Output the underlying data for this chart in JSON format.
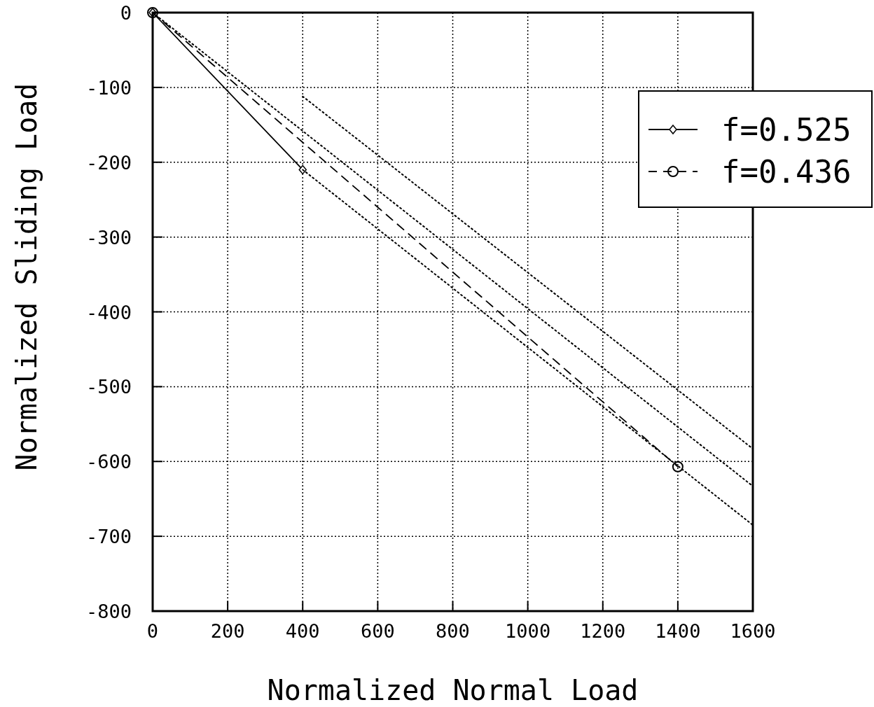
{
  "chart_data": {
    "type": "line",
    "xlabel": "Normalized Normal Load",
    "ylabel": "Normalized Sliding Load",
    "xlim": [
      0,
      1600
    ],
    "ylim": [
      -800,
      0
    ],
    "xticks": [
      0,
      200,
      400,
      600,
      800,
      1000,
      1200,
      1400,
      1600
    ],
    "yticks": [
      -800,
      -700,
      -600,
      -500,
      -400,
      -300,
      -200,
      -100,
      0
    ],
    "grid": true,
    "legend": "top right",
    "series": [
      {
        "name": "f=0.525",
        "color": "#000000",
        "x": [
          0,
          400
        ],
        "values": [
          0,
          -210
        ],
        "line_style": "solid",
        "marker": "diamond"
      },
      {
        "name": "f=0.436",
        "color": "#000000",
        "x": [
          0,
          1400
        ],
        "values": [
          0,
          -607
        ],
        "line_style": "dashed",
        "marker": "circle"
      },
      {
        "color": "#000000",
        "x": [
          400,
          1600
        ],
        "values": [
          -112,
          -583
        ],
        "line_style": "dotted",
        "marker": "none"
      },
      {
        "color": "#000000",
        "x": [
          0,
          1600
        ],
        "values": [
          0,
          -633
        ],
        "line_style": "dotted",
        "marker": "none"
      },
      {
        "color": "#000000",
        "x": [
          400,
          1600
        ],
        "values": [
          -210,
          -685
        ],
        "line_style": "dotted",
        "marker": "none"
      }
    ]
  }
}
